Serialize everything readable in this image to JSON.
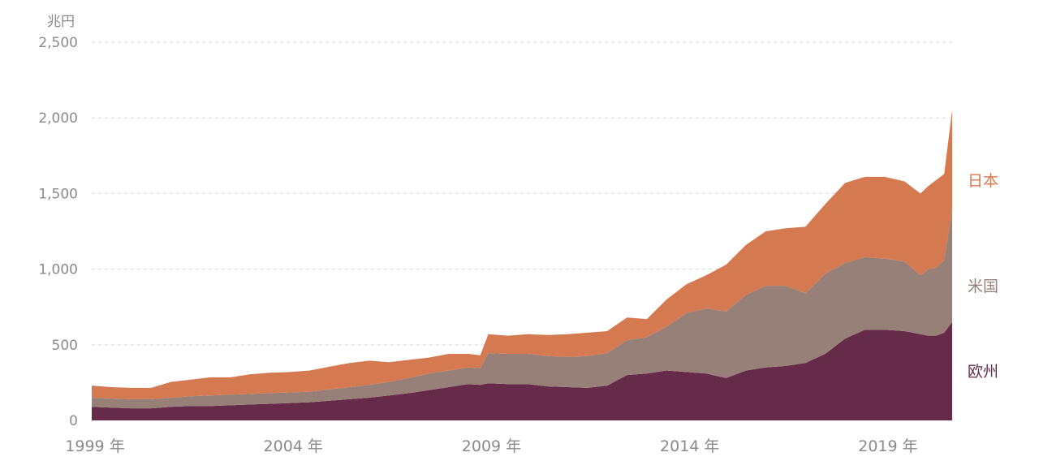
{
  "chart_data": {
    "type": "area",
    "stacked": true,
    "y_unit": "兆円",
    "ylim": [
      0,
      2500
    ],
    "yticks": [
      "0",
      "500",
      "1,000",
      "1,500",
      "2,000",
      "2,500"
    ],
    "ytick_values": [
      0,
      500,
      1000,
      1500,
      2000,
      2500
    ],
    "xticks": [
      "1999 年",
      "2004 年",
      "2009 年",
      "2014 年",
      "2019 年"
    ],
    "xtick_values": [
      1999,
      2004,
      2009,
      2014,
      2019
    ],
    "xlim": [
      1999,
      2020.7
    ],
    "grid": true,
    "x": [
      1999.0,
      1999.5,
      2000.0,
      2000.5,
      2001.0,
      2001.5,
      2002.0,
      2002.5,
      2003.0,
      2003.5,
      2004.0,
      2004.5,
      2005.0,
      2005.5,
      2006.0,
      2006.5,
      2007.0,
      2007.5,
      2008.0,
      2008.5,
      2008.8,
      2009.0,
      2009.5,
      2010.0,
      2010.5,
      2011.0,
      2011.5,
      2012.0,
      2012.5,
      2013.0,
      2013.5,
      2014.0,
      2014.5,
      2015.0,
      2015.5,
      2016.0,
      2016.5,
      2017.0,
      2017.5,
      2018.0,
      2018.5,
      2019.0,
      2019.5,
      2019.9,
      2020.1,
      2020.3,
      2020.5,
      2020.7
    ],
    "series": [
      {
        "name": "欧州",
        "color": "#652b48",
        "values": [
          90,
          85,
          80,
          80,
          90,
          95,
          95,
          100,
          105,
          110,
          115,
          120,
          130,
          140,
          150,
          165,
          180,
          200,
          220,
          240,
          235,
          245,
          240,
          240,
          225,
          220,
          215,
          230,
          300,
          310,
          330,
          320,
          310,
          280,
          330,
          350,
          360,
          380,
          440,
          540,
          600,
          600,
          590,
          570,
          560,
          560,
          580,
          650
        ]
      },
      {
        "name": "米国",
        "color": "#978078",
        "values": [
          60,
          60,
          60,
          60,
          60,
          65,
          70,
          70,
          70,
          70,
          70,
          70,
          75,
          80,
          85,
          90,
          100,
          110,
          110,
          110,
          110,
          200,
          200,
          200,
          200,
          200,
          210,
          215,
          230,
          240,
          290,
          390,
          430,
          440,
          500,
          540,
          530,
          460,
          530,
          500,
          480,
          470,
          460,
          390,
          440,
          450,
          480,
          750
        ]
      },
      {
        "name": "日本",
        "color": "#d57a50",
        "values": [
          80,
          75,
          75,
          75,
          105,
          110,
          120,
          115,
          130,
          135,
          135,
          140,
          150,
          160,
          160,
          130,
          120,
          105,
          110,
          90,
          85,
          125,
          120,
          130,
          140,
          150,
          155,
          145,
          150,
          120,
          180,
          190,
          220,
          310,
          330,
          360,
          380,
          440,
          460,
          530,
          530,
          540,
          530,
          540,
          550,
          580,
          570,
          650
        ]
      }
    ]
  }
}
